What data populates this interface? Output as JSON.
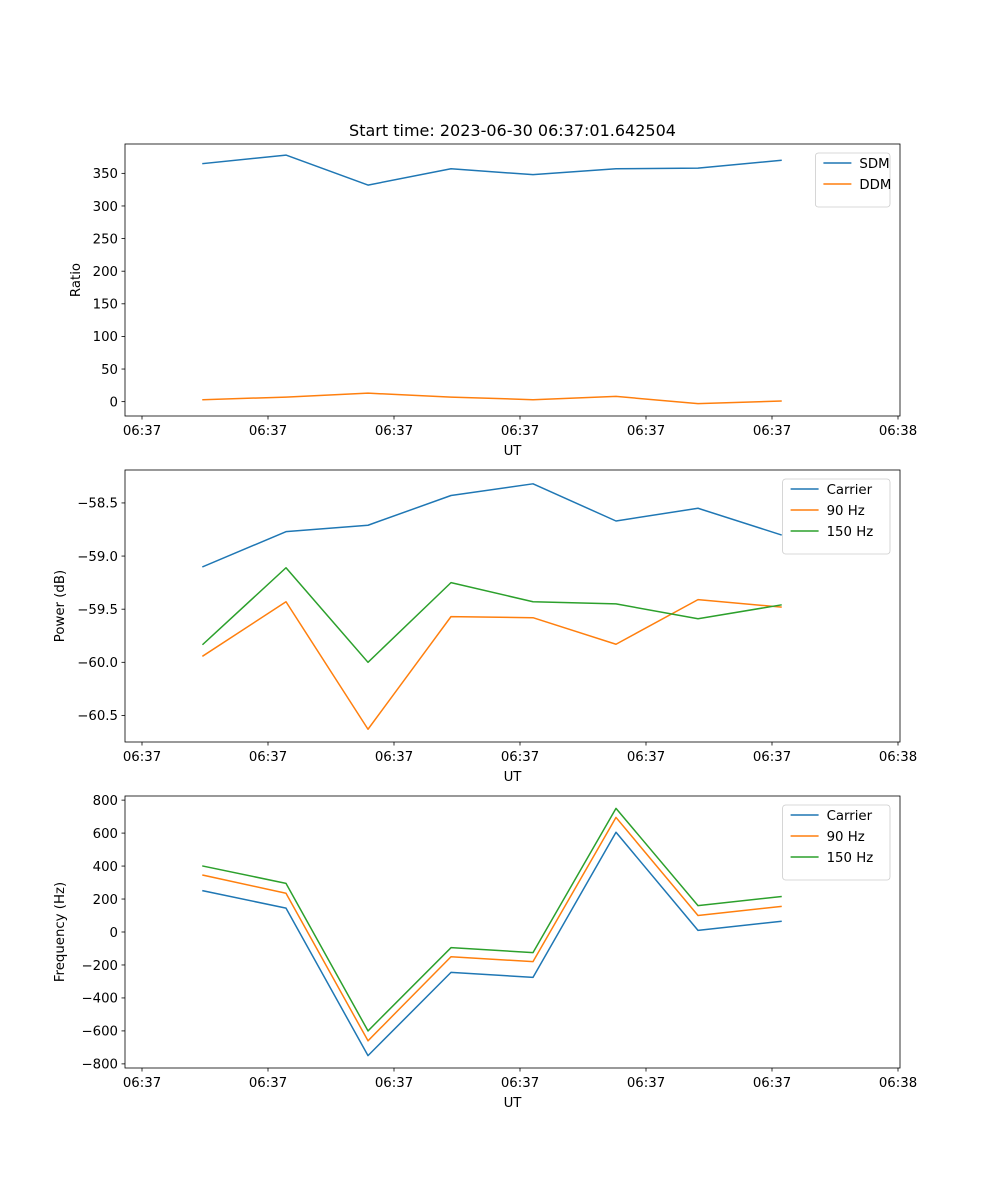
{
  "figure": {
    "title": "Start time: 2023-06-30 06:37:01.642504"
  },
  "chart_data": [
    {
      "type": "line",
      "xlabel": "UT",
      "ylabel": "Ratio",
      "x_tick_labels": [
        "06:37",
        "06:37",
        "06:37",
        "06:37",
        "06:37",
        "06:37",
        "06:38"
      ],
      "ylim": [
        -22,
        395
      ],
      "yticks": [
        0,
        50,
        100,
        150,
        200,
        250,
        300,
        350
      ],
      "legend_position": "top-right",
      "grid": false,
      "series": [
        {
          "name": "SDM",
          "color": "#1f77b4",
          "values": [
            365,
            378,
            332,
            357,
            348,
            357,
            358,
            370
          ]
        },
        {
          "name": "DDM",
          "color": "#ff7f0e",
          "values": [
            3,
            7,
            13,
            7,
            3,
            8,
            -3,
            1
          ]
        }
      ]
    },
    {
      "type": "line",
      "xlabel": "UT",
      "ylabel": "Power (dB)",
      "x_tick_labels": [
        "06:37",
        "06:37",
        "06:37",
        "06:37",
        "06:37",
        "06:37",
        "06:38"
      ],
      "ylim": [
        -60.75,
        -58.19
      ],
      "yticks": [
        -60.5,
        -60.0,
        -59.5,
        -59.0,
        -58.5
      ],
      "ytick_labels": [
        "−60.5",
        "−60.0",
        "−59.5",
        "−59.0",
        "−58.5"
      ],
      "legend_position": "top-right",
      "grid": false,
      "series": [
        {
          "name": "Carrier",
          "color": "#1f77b4",
          "values": [
            -59.1,
            -58.77,
            -58.71,
            -58.43,
            -58.32,
            -58.67,
            -58.55,
            -58.8
          ]
        },
        {
          "name": "90 Hz",
          "color": "#ff7f0e",
          "values": [
            -59.94,
            -59.43,
            -60.63,
            -59.57,
            -59.58,
            -59.83,
            -59.41,
            -59.48
          ]
        },
        {
          "name": "150 Hz",
          "color": "#2ca02c",
          "values": [
            -59.83,
            -59.11,
            -60.0,
            -59.25,
            -59.43,
            -59.45,
            -59.59,
            -59.46
          ]
        }
      ]
    },
    {
      "type": "line",
      "xlabel": "UT",
      "ylabel": "Frequency (Hz)",
      "x_tick_labels": [
        "06:37",
        "06:37",
        "06:37",
        "06:37",
        "06:37",
        "06:37",
        "06:38"
      ],
      "ylim": [
        -825,
        825
      ],
      "yticks": [
        -800,
        -600,
        -400,
        -200,
        0,
        200,
        400,
        600,
        800
      ],
      "ytick_labels": [
        "−800",
        "−600",
        "−400",
        "−200",
        "0",
        "200",
        "400",
        "600",
        "800"
      ],
      "legend_position": "top-right",
      "grid": false,
      "series": [
        {
          "name": "Carrier",
          "color": "#1f77b4",
          "values": [
            250,
            145,
            -750,
            -245,
            -275,
            605,
            10,
            65
          ]
        },
        {
          "name": "90 Hz",
          "color": "#ff7f0e",
          "values": [
            345,
            235,
            -660,
            -150,
            -180,
            695,
            100,
            155
          ]
        },
        {
          "name": "150 Hz",
          "color": "#2ca02c",
          "values": [
            400,
            295,
            -600,
            -95,
            -125,
            750,
            160,
            215
          ]
        }
      ]
    }
  ]
}
